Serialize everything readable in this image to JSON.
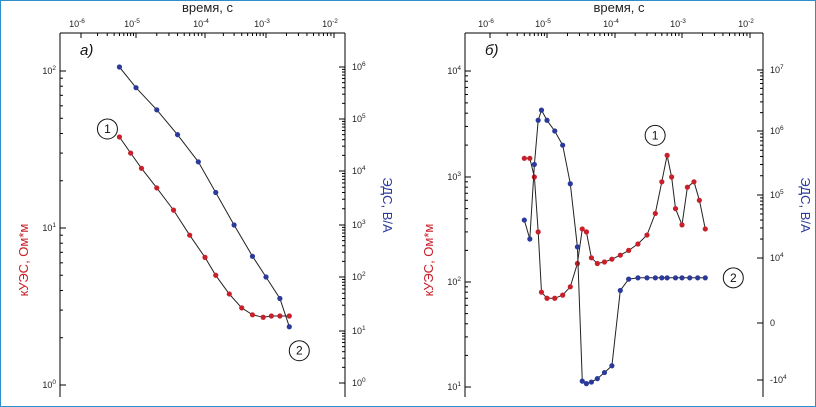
{
  "chart_data": [
    {
      "type": "line",
      "panel_label": "а)",
      "x_title": "время, с",
      "y_left_title": "кУЭС, Ом*м",
      "y_right_title": "ЭДС, В/А",
      "x_scale": "log",
      "xlim": [
        1e-06,
        0.01
      ],
      "x_ticks": [
        {
          "base": "10",
          "exp": "-6",
          "value": 1e-06
        },
        {
          "base": "10",
          "exp": "-5",
          "value": 1e-05
        },
        {
          "base": "10",
          "exp": "-4",
          "value": 0.0001
        },
        {
          "base": "10",
          "exp": "-3",
          "value": 0.001
        },
        {
          "base": "10",
          "exp": "-2",
          "value": 0.01
        }
      ],
      "y_left_scale": "log",
      "y_left_lim": [
        1,
        100
      ],
      "y_left_ticks": [
        {
          "base": "10",
          "exp": "0",
          "value": 1
        },
        {
          "base": "10",
          "exp": "1",
          "value": 10
        },
        {
          "base": "10",
          "exp": "2",
          "value": 100
        }
      ],
      "y_right_scale": "log",
      "y_right_lim": [
        1,
        1000000
      ],
      "y_right_ticks": [
        {
          "base": "10",
          "exp": "0",
          "value": 1
        },
        {
          "base": "10",
          "exp": "1",
          "value": 10
        },
        {
          "base": "10",
          "exp": "2",
          "value": 100
        },
        {
          "base": "10",
          "exp": "3",
          "value": 1000
        },
        {
          "base": "10",
          "exp": "4",
          "value": 10000
        },
        {
          "base": "10",
          "exp": "5",
          "value": 100000
        },
        {
          "base": "10",
          "exp": "6",
          "value": 1000000
        }
      ],
      "series": [
        {
          "marker": "1",
          "axis": "left",
          "color": "#c8202a",
          "marker_at": "start",
          "x": [
            5e-06,
            8e-06,
            1.2e-05,
            2e-05,
            3.5e-05,
            6e-05,
            0.0001,
            0.00015,
            0.00025,
            0.0004,
            0.0006,
            0.0009,
            0.0012,
            0.0016,
            0.0022
          ],
          "y": [
            38,
            30,
            24,
            18,
            13,
            9,
            6.5,
            5,
            3.8,
            3.1,
            2.8,
            2.7,
            2.75,
            2.75,
            2.75
          ]
        },
        {
          "marker": "2",
          "axis": "right",
          "color": "#2b3a9a",
          "marker_at": "end",
          "x": [
            5e-06,
            1e-05,
            2e-05,
            4e-05,
            8e-05,
            0.00015,
            0.0003,
            0.0006,
            0.001,
            0.0016,
            0.0022
          ],
          "y": [
            1000000,
            400000,
            150000,
            50000,
            15000,
            4000,
            1000,
            250,
            100,
            40,
            12
          ]
        }
      ]
    },
    {
      "type": "line",
      "panel_label": "б)",
      "x_title": "время, с",
      "y_left_title": "кУЭС, Ом*м",
      "y_right_title": "ЭДС, В/А",
      "x_scale": "log",
      "xlim": [
        1e-06,
        0.01
      ],
      "x_ticks": [
        {
          "base": "10",
          "exp": "-6",
          "value": 1e-06
        },
        {
          "base": "10",
          "exp": "-5",
          "value": 1e-05
        },
        {
          "base": "10",
          "exp": "-4",
          "value": 0.0001
        },
        {
          "base": "10",
          "exp": "-3",
          "value": 0.001
        },
        {
          "base": "10",
          "exp": "-2",
          "value": 0.01
        }
      ],
      "y_left_scale": "log",
      "y_left_lim": [
        10,
        10000
      ],
      "y_left_ticks": [
        {
          "base": "10",
          "exp": "1",
          "value": 10
        },
        {
          "base": "10",
          "exp": "2",
          "value": 100
        },
        {
          "base": "10",
          "exp": "3",
          "value": 1000
        },
        {
          "base": "10",
          "exp": "4",
          "value": 10000
        }
      ],
      "y_right_scale": "symlog",
      "y_right_ticks": [
        {
          "base": "-10",
          "exp": "4",
          "value": -10000
        },
        {
          "base": "0",
          "exp": "",
          "value": 0
        },
        {
          "base": "10",
          "exp": "4",
          "value": 10000
        },
        {
          "base": "10",
          "exp": "5",
          "value": 100000
        },
        {
          "base": "10",
          "exp": "6",
          "value": 1000000
        },
        {
          "base": "10",
          "exp": "7",
          "value": 10000000
        }
      ],
      "series": [
        {
          "marker": "1",
          "axis": "left",
          "color": "#c8202a",
          "marker_at": "peak",
          "x": [
            4e-06,
            5e-06,
            6e-06,
            7e-06,
            8e-06,
            1e-05,
            1.3e-05,
            1.7e-05,
            2.2e-05,
            2.8e-05,
            3.3e-05,
            3.8e-05,
            4.5e-05,
            5.5e-05,
            7e-05,
            9e-05,
            0.00012,
            0.00016,
            0.00022,
            0.0003,
            0.0004,
            0.0005,
            0.0006,
            0.0007,
            0.0008,
            0.001,
            0.0012,
            0.0015,
            0.0018,
            0.0022
          ],
          "y": [
            1500,
            1500,
            1000,
            300,
            80,
            70,
            70,
            75,
            90,
            150,
            320,
            300,
            170,
            150,
            155,
            165,
            180,
            200,
            230,
            280,
            450,
            900,
            1600,
            1000,
            500,
            350,
            800,
            900,
            600,
            320
          ]
        },
        {
          "marker": "2",
          "axis": "right",
          "color": "#2b3a9a",
          "marker_at": "end",
          "x": [
            4e-06,
            5e-06,
            6e-06,
            7e-06,
            8e-06,
            1e-05,
            1.3e-05,
            1.7e-05,
            2.2e-05,
            2.8e-05,
            3.3e-05,
            3.8e-05,
            4.5e-05,
            5.5e-05,
            7e-05,
            9e-05,
            0.00012,
            0.00016,
            0.00022,
            0.0003,
            0.0004,
            0.0005,
            0.0006,
            0.0008,
            0.001,
            0.0013,
            0.0017,
            0.0022
          ],
          "y": [
            40000,
            20000,
            300000,
            1500000,
            2200000,
            1500000,
            1000000,
            600000,
            150000,
            15000,
            -12000,
            -18000,
            -14000,
            -8000,
            -3000,
            -1000,
            100,
            500,
            600,
            600,
            600,
            600,
            600,
            600,
            600,
            600,
            600,
            600
          ]
        }
      ]
    }
  ]
}
